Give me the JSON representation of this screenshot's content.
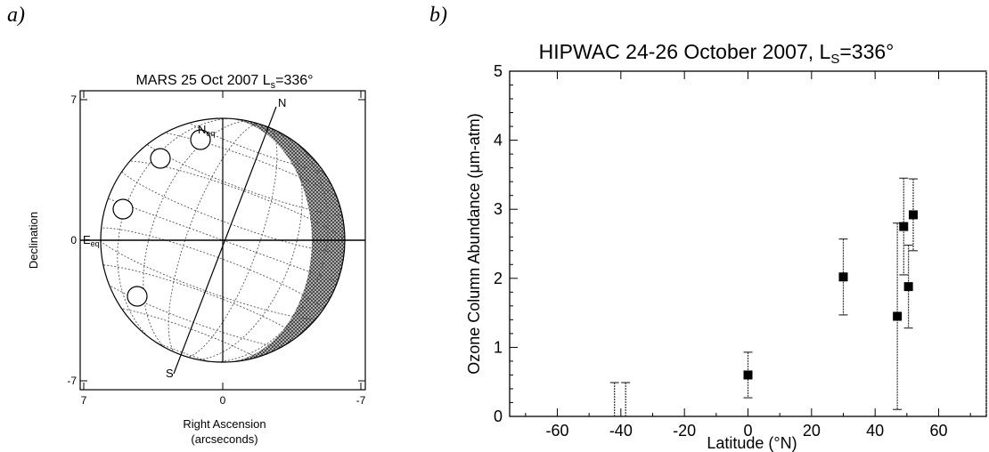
{
  "panel_a": {
    "letter": "a)",
    "title": "MARS  25 Oct 2007  L",
    "title_sub": "s",
    "title_suffix": "=336°",
    "ylabel": "Declination",
    "xlabel_line1": "Right Ascension",
    "xlabel_line2": "(arcseconds)",
    "x_ticks": [
      "7",
      "0",
      "-7"
    ],
    "y_ticks": [
      "7",
      "0",
      "-7"
    ],
    "label_north_eq": "N",
    "label_north_eq_sub": "eq",
    "label_east_eq": "E",
    "label_east_eq_sub": "eq",
    "label_north_pole": "N",
    "label_south_pole": "S",
    "beam_count": 4
  },
  "panel_b": {
    "letter": "b)",
    "title": "HIPWAC 24-26 October 2007, L",
    "title_sub": "S",
    "title_suffix": "=336°"
  },
  "chart_data": {
    "type": "scatter",
    "title": "HIPWAC 24-26 October 2007, L_S=336°",
    "xlabel": "Latitude (°N)",
    "ylabel": "Ozone Column Abundance (μm-atm)",
    "xlim": [
      -75,
      75
    ],
    "ylim": [
      0,
      5
    ],
    "x_ticks": [
      "-60",
      "-40",
      "-20",
      "0",
      "20",
      "40",
      "60"
    ],
    "y_ticks": [
      "0",
      "1",
      "2",
      "3",
      "4",
      "5"
    ],
    "points": [
      {
        "x": 0,
        "y": 0.6,
        "err": 0.33
      },
      {
        "x": 30,
        "y": 2.02,
        "err": 0.55
      },
      {
        "x": 47,
        "y": 1.45,
        "err": 1.35
      },
      {
        "x": 49,
        "y": 2.75,
        "err": 0.7
      },
      {
        "x": 50.5,
        "y": 1.88,
        "err": 0.6
      },
      {
        "x": 52,
        "y": 2.92,
        "err": 0.52
      }
    ],
    "upper_limits": [
      {
        "x": -42,
        "y": 0.49
      },
      {
        "x": -38.5,
        "y": 0.49
      }
    ]
  }
}
